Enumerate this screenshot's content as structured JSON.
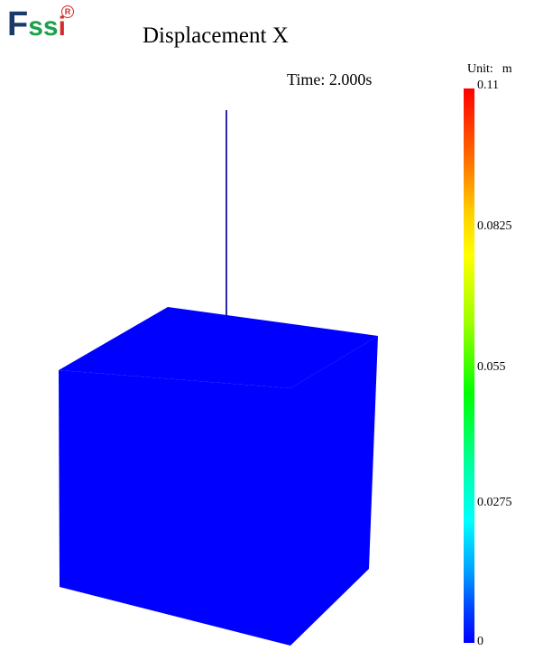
{
  "logo": {
    "letter_f": "F",
    "letter_s": "ss",
    "letter_i": "i",
    "registered": "R"
  },
  "title": "Displacement X",
  "time_label": "Time: 2.000s",
  "unit": {
    "label": "Unit:",
    "value": "m"
  },
  "colorbar": {
    "ticks": [
      "0.11",
      "0.0825",
      "0.055",
      "0.0275",
      "0"
    ],
    "max": 0.11,
    "min": 0
  },
  "colors": {
    "cube": "#0000ff",
    "pole": "#2a2aa8",
    "logo_dark": "#1a3a6b",
    "logo_green": "#1aa14a",
    "logo_red": "#d42a2a"
  }
}
